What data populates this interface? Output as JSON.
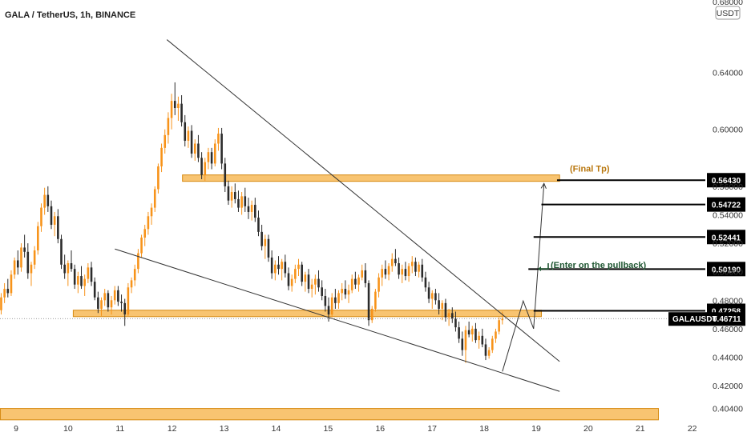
{
  "header": {
    "title": "GALA / TetherUS, 1h, BINANCE"
  },
  "price_axis": {
    "unit": "USDT",
    "top_partial": "0.68000"
  },
  "symbol_tag": {
    "label": "GALAUSDT",
    "value": "0.46711"
  },
  "annotations": {
    "final_tp": "(Final Tp)",
    "enter": "(Enter on the pullback)"
  },
  "colors": {
    "bull": "#f7931a",
    "bear": "#2b2b2b",
    "zone_fill": "#f8c471",
    "zone_stroke": "#d68910",
    "final_tp_text": "#b9770e",
    "enter_text": "#1e5631",
    "tag_bg": "#000000",
    "trendline": "#333333",
    "grid": "#eeeeee"
  },
  "chart_data": {
    "type": "candlestick",
    "title": "GALA / TetherUS, 1h, BINANCE",
    "x_ticks": [
      "9",
      "10",
      "11",
      "12",
      "13",
      "14",
      "15",
      "16",
      "17",
      "18",
      "19",
      "20",
      "21",
      "22"
    ],
    "y_ticks": [
      0.404,
      0.42,
      0.44,
      0.46,
      0.48,
      0.5,
      0.52,
      0.54,
      0.56,
      0.6,
      0.64
    ],
    "y_tick_labels": [
      "0.40400",
      "0.42000",
      "0.44000",
      "0.46000",
      "0.48000",
      "0.50000",
      "0.52000",
      "0.54000",
      "0.56000",
      "0.60000",
      "0.64000"
    ],
    "ylim": [
      0.398,
      0.681
    ],
    "last_price": 0.46711,
    "price_levels": [
      {
        "value": 0.5643,
        "label": "0.56430"
      },
      {
        "value": 0.54722,
        "label": "0.54722"
      },
      {
        "value": 0.52441,
        "label": "0.52441"
      },
      {
        "value": 0.5019,
        "label": "0.50190"
      },
      {
        "value": 0.47258,
        "label": "0.47258"
      }
    ],
    "zones": [
      {
        "name": "final-tp-zone",
        "x_start": 12.2,
        "x_end": 19.45,
        "y_low": 0.5635,
        "y_high": 0.568
      },
      {
        "name": "entry-zone",
        "x_start": 10.1,
        "x_end": 19.1,
        "y_low": 0.4685,
        "y_high": 0.473
      },
      {
        "name": "bottom-zone",
        "x_start": 8.7,
        "x_end": 21.35,
        "y_low": 0.396,
        "y_high": 0.404
      }
    ],
    "trendlines": [
      {
        "name": "upper-wedge-line",
        "x1": 11.9,
        "y1": 0.663,
        "x2": 19.45,
        "y2": 0.437
      },
      {
        "name": "lower-wedge-line",
        "x1": 10.9,
        "y1": 0.516,
        "x2": 19.45,
        "y2": 0.416
      },
      {
        "name": "projection-line",
        "points": [
          [
            18.35,
            0.43
          ],
          [
            18.75,
            0.4795
          ],
          [
            18.95,
            0.46
          ],
          [
            19.15,
            0.562
          ]
        ]
      }
    ],
    "candles": [
      [
        0.466,
        0.476,
        0.462,
        0.473
      ],
      [
        0.473,
        0.485,
        0.47,
        0.482
      ],
      [
        0.482,
        0.492,
        0.478,
        0.488
      ],
      [
        0.488,
        0.495,
        0.482,
        0.485
      ],
      [
        0.485,
        0.501,
        0.483,
        0.498
      ],
      [
        0.498,
        0.51,
        0.495,
        0.508
      ],
      [
        0.508,
        0.515,
        0.498,
        0.503
      ],
      [
        0.503,
        0.52,
        0.5,
        0.517
      ],
      [
        0.517,
        0.526,
        0.51,
        0.514
      ],
      [
        0.514,
        0.52,
        0.495,
        0.499
      ],
      [
        0.499,
        0.507,
        0.49,
        0.505
      ],
      [
        0.505,
        0.518,
        0.502,
        0.515
      ],
      [
        0.515,
        0.535,
        0.512,
        0.532
      ],
      [
        0.532,
        0.548,
        0.528,
        0.545
      ],
      [
        0.545,
        0.559,
        0.54,
        0.554
      ],
      [
        0.554,
        0.56,
        0.542,
        0.546
      ],
      [
        0.546,
        0.55,
        0.53,
        0.533
      ],
      [
        0.533,
        0.542,
        0.525,
        0.539
      ],
      [
        0.539,
        0.544,
        0.52,
        0.523
      ],
      [
        0.523,
        0.526,
        0.502,
        0.505
      ],
      [
        0.505,
        0.512,
        0.495,
        0.499
      ],
      [
        0.499,
        0.508,
        0.49,
        0.506
      ],
      [
        0.506,
        0.515,
        0.5,
        0.502
      ],
      [
        0.502,
        0.505,
        0.488,
        0.491
      ],
      [
        0.491,
        0.5,
        0.485,
        0.497
      ],
      [
        0.497,
        0.504,
        0.488,
        0.49
      ],
      [
        0.49,
        0.498,
        0.483,
        0.495
      ],
      [
        0.495,
        0.506,
        0.492,
        0.503
      ],
      [
        0.503,
        0.507,
        0.49,
        0.493
      ],
      [
        0.493,
        0.496,
        0.48,
        0.482
      ],
      [
        0.482,
        0.486,
        0.471,
        0.474
      ],
      [
        0.474,
        0.482,
        0.469,
        0.48
      ],
      [
        0.48,
        0.488,
        0.476,
        0.485
      ],
      [
        0.485,
        0.487,
        0.472,
        0.475
      ],
      [
        0.475,
        0.483,
        0.47,
        0.48
      ],
      [
        0.48,
        0.49,
        0.477,
        0.487
      ],
      [
        0.487,
        0.49,
        0.476,
        0.479
      ],
      [
        0.479,
        0.484,
        0.472,
        0.478
      ],
      [
        0.478,
        0.481,
        0.462,
        0.47
      ],
      [
        0.47,
        0.492,
        0.469,
        0.489
      ],
      [
        0.489,
        0.496,
        0.485,
        0.494
      ],
      [
        0.494,
        0.505,
        0.49,
        0.502
      ],
      [
        0.502,
        0.516,
        0.499,
        0.513
      ],
      [
        0.513,
        0.526,
        0.51,
        0.524
      ],
      [
        0.524,
        0.533,
        0.518,
        0.53
      ],
      [
        0.53,
        0.542,
        0.526,
        0.539
      ],
      [
        0.539,
        0.548,
        0.533,
        0.545
      ],
      [
        0.545,
        0.56,
        0.542,
        0.558
      ],
      [
        0.558,
        0.576,
        0.555,
        0.574
      ],
      [
        0.574,
        0.59,
        0.57,
        0.587
      ],
      [
        0.587,
        0.6,
        0.583,
        0.596
      ],
      [
        0.596,
        0.612,
        0.59,
        0.608
      ],
      [
        0.608,
        0.625,
        0.6,
        0.62
      ],
      [
        0.62,
        0.633,
        0.61,
        0.615
      ],
      [
        0.615,
        0.623,
        0.606,
        0.618
      ],
      [
        0.618,
        0.624,
        0.602,
        0.605
      ],
      [
        0.605,
        0.61,
        0.588,
        0.592
      ],
      [
        0.592,
        0.602,
        0.587,
        0.599
      ],
      [
        0.599,
        0.603,
        0.58,
        0.583
      ],
      [
        0.583,
        0.593,
        0.578,
        0.59
      ],
      [
        0.59,
        0.596,
        0.577,
        0.58
      ],
      [
        0.58,
        0.584,
        0.565,
        0.568
      ],
      [
        0.568,
        0.58,
        0.564,
        0.577
      ],
      [
        0.577,
        0.587,
        0.572,
        0.584
      ],
      [
        0.584,
        0.587,
        0.572,
        0.576
      ],
      [
        0.576,
        0.593,
        0.574,
        0.59
      ],
      [
        0.59,
        0.601,
        0.585,
        0.597
      ],
      [
        0.597,
        0.601,
        0.572,
        0.576
      ],
      [
        0.576,
        0.58,
        0.556,
        0.56
      ],
      [
        0.56,
        0.564,
        0.547,
        0.55
      ],
      [
        0.55,
        0.56,
        0.545,
        0.556
      ],
      [
        0.556,
        0.562,
        0.548,
        0.551
      ],
      [
        0.551,
        0.557,
        0.542,
        0.545
      ],
      [
        0.545,
        0.556,
        0.54,
        0.553
      ],
      [
        0.553,
        0.559,
        0.542,
        0.546
      ],
      [
        0.546,
        0.552,
        0.537,
        0.542
      ],
      [
        0.542,
        0.55,
        0.536,
        0.547
      ],
      [
        0.547,
        0.552,
        0.535,
        0.538
      ],
      [
        0.538,
        0.543,
        0.525,
        0.528
      ],
      [
        0.528,
        0.533,
        0.515,
        0.518
      ],
      [
        0.518,
        0.526,
        0.509,
        0.523
      ],
      [
        0.523,
        0.526,
        0.507,
        0.51
      ],
      [
        0.51,
        0.515,
        0.495,
        0.499
      ],
      [
        0.499,
        0.508,
        0.494,
        0.505
      ],
      [
        0.505,
        0.511,
        0.498,
        0.502
      ],
      [
        0.502,
        0.509,
        0.494,
        0.507
      ],
      [
        0.507,
        0.512,
        0.496,
        0.499
      ],
      [
        0.499,
        0.503,
        0.487,
        0.49
      ],
      [
        0.49,
        0.498,
        0.486,
        0.495
      ],
      [
        0.495,
        0.505,
        0.492,
        0.502
      ],
      [
        0.502,
        0.509,
        0.497,
        0.505
      ],
      [
        0.505,
        0.507,
        0.49,
        0.493
      ],
      [
        0.493,
        0.5,
        0.486,
        0.498
      ],
      [
        0.498,
        0.502,
        0.485,
        0.488
      ],
      [
        0.488,
        0.495,
        0.482,
        0.491
      ],
      [
        0.491,
        0.498,
        0.484,
        0.495
      ],
      [
        0.495,
        0.501,
        0.486,
        0.489
      ],
      [
        0.489,
        0.494,
        0.48,
        0.483
      ],
      [
        0.483,
        0.488,
        0.472,
        0.476
      ],
      [
        0.476,
        0.482,
        0.465,
        0.47
      ],
      [
        0.47,
        0.485,
        0.468,
        0.482
      ],
      [
        0.482,
        0.488,
        0.474,
        0.478
      ],
      [
        0.478,
        0.487,
        0.474,
        0.485
      ],
      [
        0.485,
        0.492,
        0.48,
        0.488
      ],
      [
        0.488,
        0.494,
        0.481,
        0.484
      ],
      [
        0.484,
        0.491,
        0.478,
        0.487
      ],
      [
        0.487,
        0.498,
        0.485,
        0.495
      ],
      [
        0.495,
        0.5,
        0.488,
        0.491
      ],
      [
        0.491,
        0.498,
        0.486,
        0.496
      ],
      [
        0.496,
        0.505,
        0.494,
        0.501
      ],
      [
        0.501,
        0.506,
        0.489,
        0.492
      ],
      [
        0.492,
        0.494,
        0.462,
        0.466
      ],
      [
        0.466,
        0.476,
        0.464,
        0.474
      ],
      [
        0.474,
        0.488,
        0.472,
        0.486
      ],
      [
        0.486,
        0.499,
        0.482,
        0.496
      ],
      [
        0.496,
        0.505,
        0.49,
        0.502
      ],
      [
        0.502,
        0.508,
        0.495,
        0.498
      ],
      [
        0.498,
        0.506,
        0.494,
        0.504
      ],
      [
        0.504,
        0.513,
        0.5,
        0.509
      ],
      [
        0.509,
        0.516,
        0.504,
        0.506
      ],
      [
        0.506,
        0.51,
        0.495,
        0.498
      ],
      [
        0.498,
        0.505,
        0.492,
        0.502
      ],
      [
        0.502,
        0.507,
        0.494,
        0.497
      ],
      [
        0.497,
        0.506,
        0.493,
        0.504
      ],
      [
        0.504,
        0.511,
        0.499,
        0.507
      ],
      [
        0.507,
        0.51,
        0.497,
        0.5
      ],
      [
        0.5,
        0.507,
        0.496,
        0.505
      ],
      [
        0.505,
        0.509,
        0.493,
        0.496
      ],
      [
        0.496,
        0.5,
        0.486,
        0.489
      ],
      [
        0.489,
        0.493,
        0.478,
        0.481
      ],
      [
        0.481,
        0.487,
        0.474,
        0.485
      ],
      [
        0.485,
        0.488,
        0.477,
        0.48
      ],
      [
        0.48,
        0.485,
        0.47,
        0.474
      ],
      [
        0.474,
        0.48,
        0.466,
        0.478
      ],
      [
        0.478,
        0.481,
        0.465,
        0.468
      ],
      [
        0.468,
        0.474,
        0.462,
        0.471
      ],
      [
        0.471,
        0.475,
        0.464,
        0.467
      ],
      [
        0.467,
        0.472,
        0.458,
        0.461
      ],
      [
        0.461,
        0.465,
        0.45,
        0.453
      ],
      [
        0.453,
        0.458,
        0.441,
        0.445
      ],
      [
        0.445,
        0.462,
        0.436,
        0.459
      ],
      [
        0.459,
        0.465,
        0.454,
        0.456
      ],
      [
        0.456,
        0.462,
        0.451,
        0.46
      ],
      [
        0.46,
        0.464,
        0.45,
        0.452
      ],
      [
        0.452,
        0.458,
        0.446,
        0.455
      ],
      [
        0.455,
        0.46,
        0.447,
        0.449
      ],
      [
        0.449,
        0.453,
        0.438,
        0.441
      ],
      [
        0.441,
        0.447,
        0.439,
        0.445
      ],
      [
        0.445,
        0.455,
        0.443,
        0.453
      ],
      [
        0.453,
        0.46,
        0.45,
        0.458
      ],
      [
        0.458,
        0.468,
        0.456,
        0.466
      ],
      [
        0.466,
        0.472,
        0.463,
        0.4671
      ]
    ],
    "candles_x_start": 8.65,
    "candles_x_end": 18.35
  }
}
